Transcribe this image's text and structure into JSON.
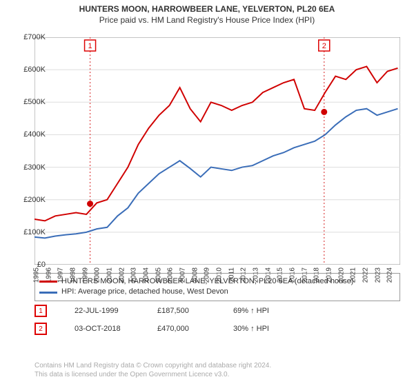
{
  "title_line1": "HUNTERS MOON, HARROWBEER LANE, YELVERTON, PL20 6EA",
  "title_line2": "Price paid vs. HM Land Registry's House Price Index (HPI)",
  "chart": {
    "type": "line",
    "background_color": "#ffffff",
    "plot_border_color": "#888888",
    "grid_color": "#dddddd",
    "marker_line_color": "#d44",
    "ylabel_prefix": "£",
    "ylim": [
      0,
      700
    ],
    "ytick_step": 100,
    "yticks": [
      "£0",
      "£100K",
      "£200K",
      "£300K",
      "£400K",
      "£500K",
      "£600K",
      "£700K"
    ],
    "x_years": [
      1995,
      1996,
      1997,
      1998,
      1999,
      2000,
      2001,
      2002,
      2003,
      2004,
      2005,
      2006,
      2007,
      2008,
      2009,
      2010,
      2011,
      2012,
      2013,
      2014,
      2015,
      2016,
      2017,
      2018,
      2019,
      2020,
      2021,
      2022,
      2023,
      2024
    ],
    "series": [
      {
        "name": "red",
        "label": "HUNTERS MOON, HARROWBEER LANE, YELVERTON, PL20 6EA (detached house)",
        "color": "#d00000",
        "line_width": 2,
        "data": [
          140,
          135,
          150,
          155,
          160,
          155,
          190,
          200,
          250,
          300,
          370,
          420,
          460,
          490,
          545,
          480,
          440,
          500,
          490,
          475,
          490,
          500,
          530,
          545,
          560,
          570,
          480,
          475,
          530,
          580,
          570,
          600,
          610,
          560,
          595,
          605
        ]
      },
      {
        "name": "blue",
        "label": "HPI: Average price, detached house, West Devon",
        "color": "#3a6db8",
        "line_width": 2,
        "data": [
          85,
          82,
          88,
          92,
          95,
          100,
          110,
          115,
          150,
          175,
          220,
          250,
          280,
          300,
          320,
          296,
          270,
          300,
          295,
          290,
          300,
          305,
          320,
          335,
          345,
          360,
          370,
          380,
          400,
          430,
          455,
          475,
          480,
          460,
          470,
          480
        ]
      }
    ],
    "sale_markers": [
      {
        "id": "1",
        "year_frac": 1999.56,
        "price_k": 187.5
      },
      {
        "id": "2",
        "year_frac": 2018.76,
        "price_k": 470
      }
    ]
  },
  "legend": {
    "items": [
      {
        "color": "#d00000",
        "text": "HUNTERS MOON, HARROWBEER LANE, YELVERTON, PL20 6EA (detached house)"
      },
      {
        "color": "#3a6db8",
        "text": "HPI: Average price, detached house, West Devon"
      }
    ]
  },
  "marker_rows": [
    {
      "badge": "1",
      "date": "22-JUL-1999",
      "price": "£187,500",
      "delta": "69% ↑ HPI"
    },
    {
      "badge": "2",
      "date": "03-OCT-2018",
      "price": "£470,000",
      "delta": "30% ↑ HPI"
    }
  ],
  "footer": {
    "line1": "Contains HM Land Registry data © Crown copyright and database right 2024.",
    "line2": "This data is licensed under the Open Government Licence v3.0."
  }
}
